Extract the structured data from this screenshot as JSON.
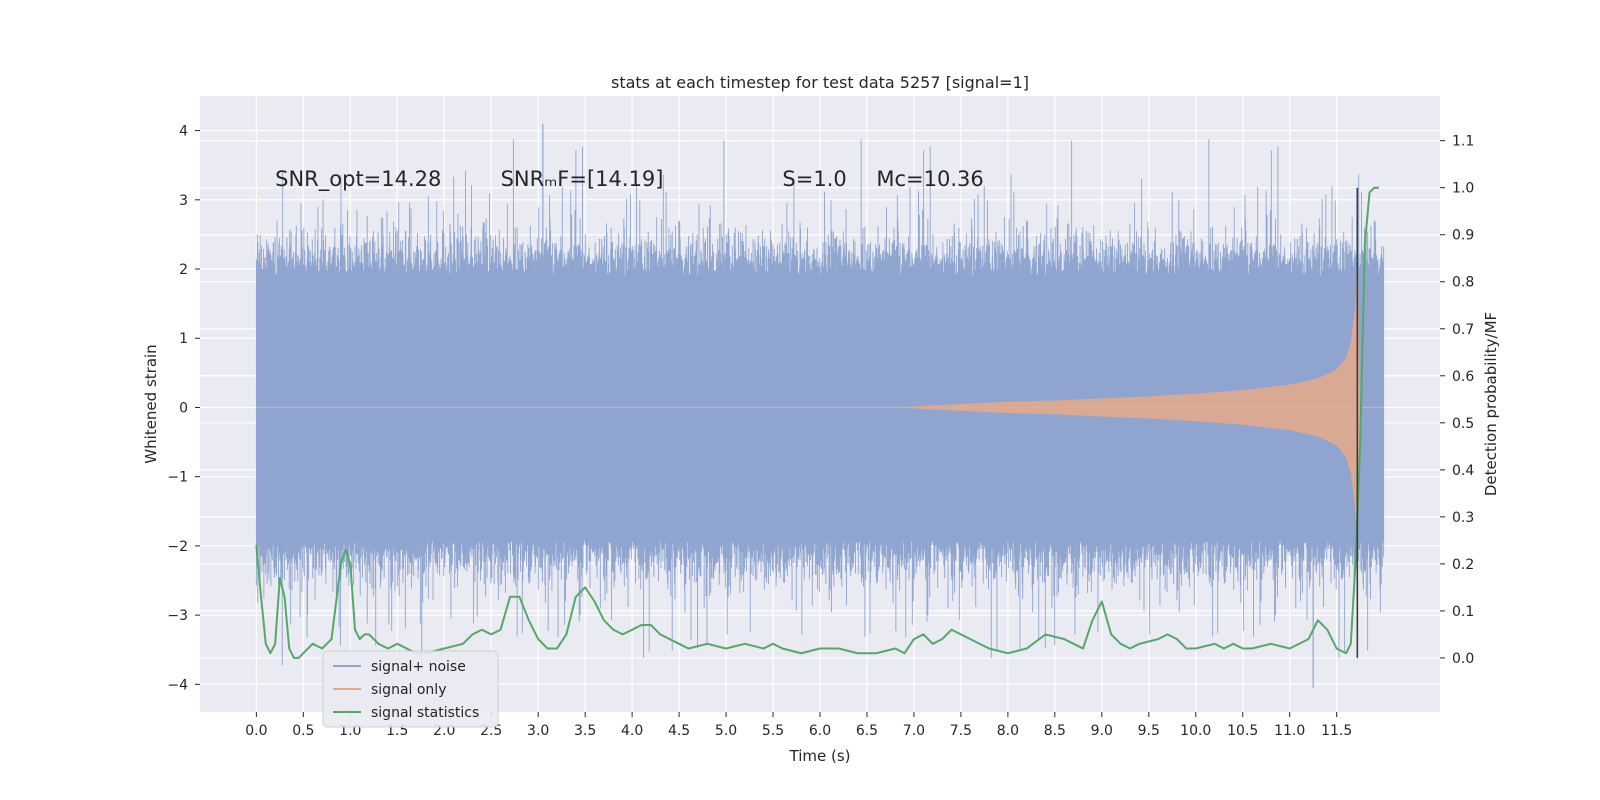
{
  "chart_data": {
    "type": "line",
    "title": "stats at each timestep for test data 5257 [signal=1]",
    "xlabel": "Time (s)",
    "ylabel": "Whitened strain",
    "y2label": "Detection probability/MF",
    "xlim": [
      -0.6,
      12.6
    ],
    "ylim": [
      -4.4,
      4.5
    ],
    "y2lim": [
      -0.115,
      1.195
    ],
    "xticks": [
      0.0,
      0.5,
      1.0,
      1.5,
      2.0,
      2.5,
      3.0,
      3.5,
      4.0,
      4.5,
      5.0,
      5.5,
      6.0,
      6.5,
      7.0,
      7.5,
      8.0,
      8.5,
      9.0,
      9.5,
      10.0,
      10.5,
      11.0,
      11.5
    ],
    "xtick_labels": [
      "0.0",
      "0.5",
      "1.0",
      "1.5",
      "2.0",
      "2.5",
      "3.0",
      "3.5",
      "4.0",
      "4.5",
      "5.0",
      "5.5",
      "6.0",
      "6.5",
      "7.0",
      "7.5",
      "8.0",
      "8.5",
      "9.0",
      "9.5",
      "10.0",
      "10.5",
      "11.0",
      "11.5"
    ],
    "yticks": [
      -4,
      -3,
      -2,
      -1,
      0,
      1,
      2,
      3,
      4
    ],
    "ytick_labels": [
      "−4",
      "−3",
      "−2",
      "−1",
      "0",
      "1",
      "2",
      "3",
      "4"
    ],
    "y2ticks": [
      0.0,
      0.1,
      0.2,
      0.3,
      0.4,
      0.5,
      0.6,
      0.7,
      0.8,
      0.9,
      1.0,
      1.1
    ],
    "y2tick_labels": [
      "0.0",
      "0.1",
      "0.2",
      "0.3",
      "0.4",
      "0.5",
      "0.6",
      "0.7",
      "0.8",
      "0.9",
      "1.0",
      "1.1"
    ],
    "annotations": [
      {
        "text": "SNR_opt=14.28",
        "x": 0.2,
        "y": 3.3
      },
      {
        "text": "SNRₘF=[14.19]",
        "x": 2.6,
        "y": 3.3
      },
      {
        "text": "S=1.0",
        "x": 5.6,
        "y": 3.3
      },
      {
        "text": "Mᴄ=10.36",
        "x": 6.6,
        "y": 3.3
      }
    ],
    "legend": {
      "position": "lower-left",
      "entries": [
        {
          "label": "signal+ noise",
          "color": "#8fa5cf"
        },
        {
          "label": "signal only",
          "color": "#e8a98a"
        },
        {
          "label": "signal statistics",
          "color": "#55a868"
        }
      ]
    },
    "series": [
      {
        "name": "signal+ noise",
        "axis": "left",
        "color": "#8fa5cf",
        "style": "dense-noise",
        "x_range": [
          0.0,
          12.0
        ],
        "core_band": 1.9,
        "max_spike": 4.1,
        "min_spike": -4.05
      },
      {
        "name": "signal only",
        "axis": "left",
        "color": "#e8a98a",
        "style": "chirp-envelope",
        "x": [
          6.8,
          7.5,
          8.0,
          8.5,
          9.0,
          9.5,
          10.0,
          10.5,
          11.0,
          11.3,
          11.5,
          11.6,
          11.65,
          11.7,
          11.72,
          11.75,
          12.0
        ],
        "amplitude": [
          0.0,
          0.05,
          0.08,
          0.1,
          0.13,
          0.16,
          0.2,
          0.25,
          0.33,
          0.42,
          0.55,
          0.72,
          0.95,
          1.5,
          2.3,
          0.0,
          0.0
        ]
      },
      {
        "name": "signal statistics",
        "axis": "right",
        "color": "#55a868",
        "x": [
          0.0,
          0.05,
          0.1,
          0.15,
          0.2,
          0.25,
          0.3,
          0.35,
          0.4,
          0.45,
          0.5,
          0.6,
          0.7,
          0.8,
          0.9,
          0.95,
          1.0,
          1.05,
          1.1,
          1.15,
          1.2,
          1.3,
          1.4,
          1.5,
          1.6,
          1.7,
          1.8,
          2.0,
          2.2,
          2.3,
          2.4,
          2.5,
          2.6,
          2.7,
          2.8,
          2.9,
          3.0,
          3.1,
          3.2,
          3.3,
          3.4,
          3.5,
          3.6,
          3.7,
          3.8,
          3.9,
          4.0,
          4.1,
          4.2,
          4.3,
          4.4,
          4.5,
          4.6,
          4.8,
          5.0,
          5.2,
          5.4,
          5.5,
          5.6,
          5.8,
          6.0,
          6.2,
          6.4,
          6.6,
          6.8,
          6.9,
          7.0,
          7.1,
          7.2,
          7.3,
          7.4,
          7.5,
          7.6,
          7.8,
          8.0,
          8.2,
          8.4,
          8.6,
          8.7,
          8.8,
          8.9,
          9.0,
          9.1,
          9.2,
          9.3,
          9.4,
          9.6,
          9.7,
          9.8,
          9.9,
          10.0,
          10.2,
          10.3,
          10.4,
          10.5,
          10.6,
          10.8,
          11.0,
          11.2,
          11.3,
          11.4,
          11.5,
          11.6,
          11.65,
          11.7,
          11.75,
          11.8,
          11.85,
          11.9,
          11.95
        ],
        "y": [
          0.24,
          0.13,
          0.03,
          0.01,
          0.03,
          0.17,
          0.13,
          0.02,
          0.0,
          0.0,
          0.01,
          0.03,
          0.02,
          0.04,
          0.2,
          0.23,
          0.2,
          0.06,
          0.04,
          0.05,
          0.05,
          0.03,
          0.02,
          0.03,
          0.02,
          0.01,
          0.01,
          0.02,
          0.03,
          0.05,
          0.06,
          0.05,
          0.06,
          0.13,
          0.13,
          0.08,
          0.04,
          0.02,
          0.02,
          0.05,
          0.13,
          0.15,
          0.12,
          0.08,
          0.06,
          0.05,
          0.06,
          0.07,
          0.07,
          0.05,
          0.04,
          0.03,
          0.02,
          0.03,
          0.02,
          0.03,
          0.02,
          0.03,
          0.02,
          0.01,
          0.02,
          0.02,
          0.01,
          0.01,
          0.02,
          0.01,
          0.04,
          0.05,
          0.03,
          0.04,
          0.06,
          0.05,
          0.04,
          0.02,
          0.01,
          0.02,
          0.05,
          0.04,
          0.03,
          0.02,
          0.08,
          0.12,
          0.05,
          0.03,
          0.02,
          0.03,
          0.04,
          0.05,
          0.04,
          0.02,
          0.02,
          0.03,
          0.02,
          0.03,
          0.02,
          0.02,
          0.03,
          0.02,
          0.04,
          0.08,
          0.06,
          0.02,
          0.01,
          0.03,
          0.2,
          0.45,
          0.88,
          0.99,
          1.0,
          1.0
        ]
      }
    ],
    "vertical_marker": {
      "x": 11.72,
      "y_from": 0.0,
      "y_to": 1.0,
      "axis": "right",
      "color": "#3a3a3a"
    }
  }
}
